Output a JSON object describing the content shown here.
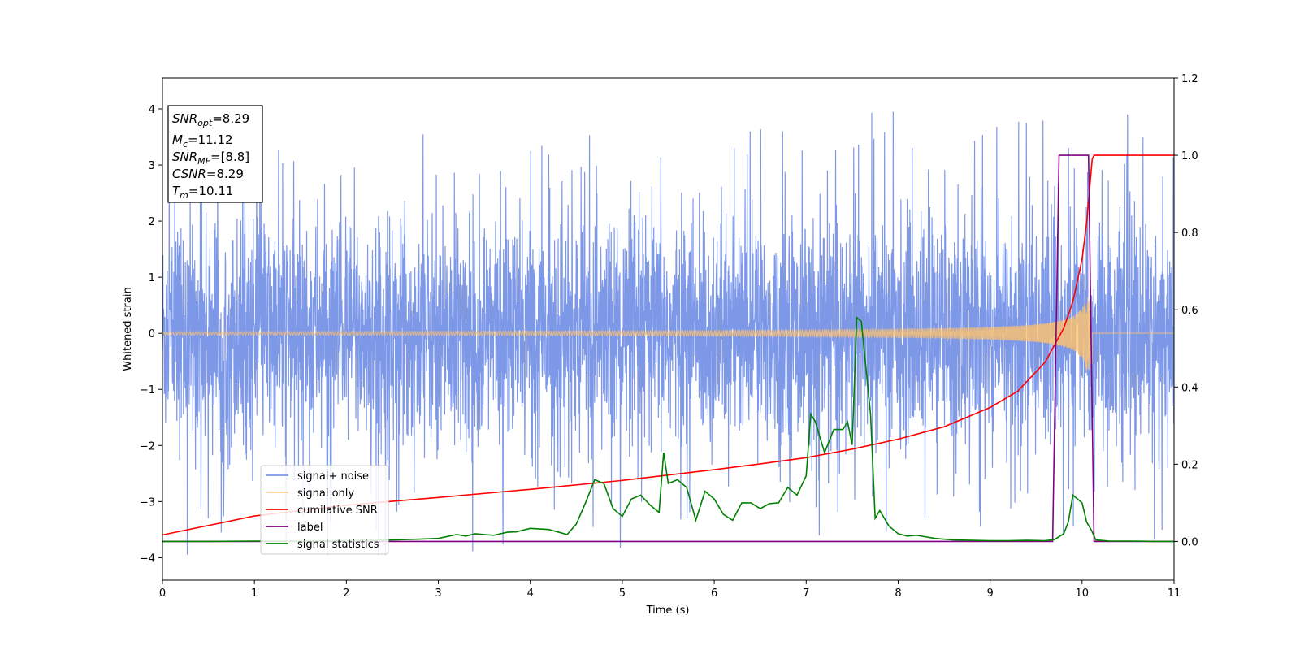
{
  "chart_data": {
    "type": "line",
    "xlabel": "Time (s)",
    "ylabel": "Whitened strain",
    "xlim": [
      0,
      11
    ],
    "ylim": [
      -4.4,
      4.55
    ],
    "y2lim": [
      -0.1,
      1.2
    ],
    "x_ticks": [
      0,
      1,
      2,
      3,
      4,
      5,
      6,
      7,
      8,
      9,
      10,
      11
    ],
    "y_ticks": [
      -4,
      -3,
      -2,
      -1,
      0,
      1,
      2,
      3,
      4
    ],
    "y2_ticks": [
      0.0,
      0.2,
      0.4,
      0.6,
      0.8,
      1.0,
      1.2
    ],
    "grid": false,
    "legend_position": "lower-left",
    "info_box": [
      {
        "base": "SNR",
        "sub": "opt",
        "value": "=8.29"
      },
      {
        "base": "M",
        "sub": "c",
        "value": "=11.12"
      },
      {
        "base": "SNR",
        "sub": "MF",
        "value": "=[8.8]"
      },
      {
        "base": "CSNR",
        "sub": "",
        "value": "=8.29"
      },
      {
        "base": "T",
        "sub": "m",
        "value": "=10.11"
      }
    ],
    "series": [
      {
        "name": "signal+ noise",
        "axis": "left",
        "color": "#7b96e8",
        "description_values": {
          "noise_sigma": 1.0,
          "peak_max": 4.1,
          "peak_min": -3.95
        }
      },
      {
        "name": "signal only",
        "axis": "left",
        "color": "#ffc36b",
        "chirp": {
          "end_time": 10.11,
          "start_amplitude": 0.03,
          "end_amplitude": 0.65
        }
      },
      {
        "name": "cumilative SNR",
        "axis": "right",
        "color": "#ff0000",
        "x": [
          0,
          1,
          2,
          3,
          4,
          5,
          6,
          6.5,
          7,
          7.5,
          8,
          8.5,
          9,
          9.3,
          9.6,
          9.8,
          9.9,
          10.0,
          10.05,
          10.11,
          10.13,
          11
        ],
        "y": [
          0.017,
          0.066,
          0.094,
          0.114,
          0.135,
          0.158,
          0.186,
          0.201,
          0.217,
          0.239,
          0.265,
          0.297,
          0.347,
          0.389,
          0.465,
          0.552,
          0.621,
          0.731,
          0.826,
          0.99,
          1.0,
          1.0
        ]
      },
      {
        "name": "label",
        "axis": "right",
        "color": "#800080",
        "x": [
          0,
          9.68,
          9.75,
          10.07,
          10.13,
          11
        ],
        "y": [
          0.0,
          0.0,
          1.0,
          1.0,
          0.0,
          0.0
        ]
      },
      {
        "name": "signal statistics",
        "axis": "right",
        "color": "#008000",
        "x": [
          0,
          0.5,
          1,
          1.5,
          2,
          2.5,
          2.8,
          3.0,
          3.2,
          3.3,
          3.4,
          3.6,
          3.75,
          3.85,
          4.0,
          4.2,
          4.4,
          4.5,
          4.6,
          4.7,
          4.8,
          4.9,
          5.0,
          5.1,
          5.2,
          5.3,
          5.4,
          5.45,
          5.5,
          5.6,
          5.7,
          5.8,
          5.9,
          6.0,
          6.1,
          6.2,
          6.3,
          6.4,
          6.5,
          6.6,
          6.7,
          6.8,
          6.9,
          7.0,
          7.05,
          7.1,
          7.2,
          7.3,
          7.4,
          7.45,
          7.5,
          7.55,
          7.6,
          7.7,
          7.75,
          7.8,
          7.9,
          8.0,
          8.1,
          8.2,
          8.3,
          8.4,
          8.6,
          8.8,
          9.0,
          9.2,
          9.4,
          9.6,
          9.7,
          9.8,
          9.85,
          9.9,
          10.0,
          10.05,
          10.1,
          10.15,
          10.3,
          10.5,
          10.8,
          11.0
        ],
        "y": [
          0.0,
          0.0,
          0.001,
          0.001,
          0.002,
          0.004,
          0.006,
          0.008,
          0.018,
          0.014,
          0.02,
          0.016,
          0.024,
          0.025,
          0.034,
          0.031,
          0.018,
          0.045,
          0.1,
          0.16,
          0.15,
          0.085,
          0.065,
          0.11,
          0.12,
          0.095,
          0.075,
          0.23,
          0.15,
          0.16,
          0.14,
          0.055,
          0.13,
          0.11,
          0.07,
          0.055,
          0.1,
          0.1,
          0.085,
          0.098,
          0.1,
          0.14,
          0.12,
          0.17,
          0.33,
          0.31,
          0.23,
          0.29,
          0.29,
          0.31,
          0.25,
          0.58,
          0.57,
          0.33,
          0.06,
          0.08,
          0.04,
          0.02,
          0.014,
          0.016,
          0.012,
          0.008,
          0.004,
          0.003,
          0.002,
          0.002,
          0.003,
          0.002,
          0.005,
          0.02,
          0.05,
          0.12,
          0.1,
          0.05,
          0.03,
          0.004,
          0.001,
          0.001,
          0.0,
          0.0
        ]
      }
    ]
  }
}
